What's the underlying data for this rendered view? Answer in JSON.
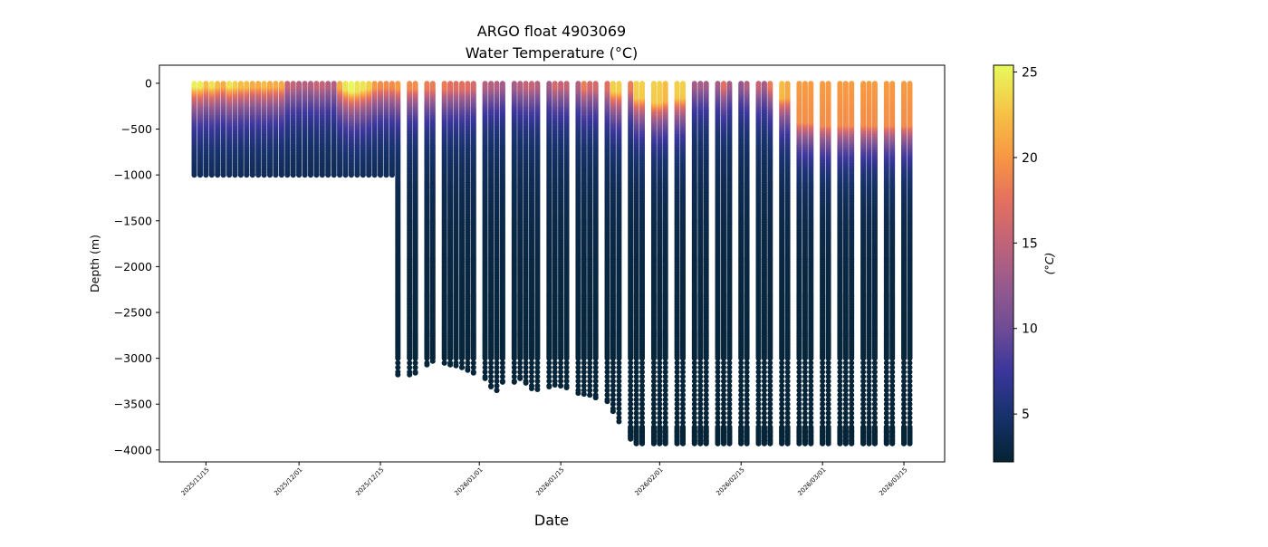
{
  "chart_data": {
    "type": "scatter",
    "title": "ARGO float 4903069",
    "subtitle": "Water Temperature (°C)",
    "xlabel": "Date",
    "ylabel": "Depth (m)",
    "xlim": [
      "2025-11-07",
      "2026-03-22"
    ],
    "ylim": [
      -4130,
      197
    ],
    "x_ticks": [
      "2025/11/15",
      "2025/12/01",
      "2025/12/15",
      "2026/01/01",
      "2026/01/15",
      "2026/02/01",
      "2026/02/15",
      "2026/03/01",
      "2026/03/15"
    ],
    "y_ticks": [
      0,
      -500,
      -1000,
      -1500,
      -2000,
      -2500,
      -3000,
      -3500,
      -4000
    ],
    "grid": false,
    "colorbar": {
      "label": "(°C)",
      "range": [
        2.2,
        25.4
      ],
      "ticks": [
        5,
        10,
        15,
        20,
        25
      ],
      "colormap": [
        {
          "value": 2.2,
          "color": "#042333"
        },
        {
          "value": 5,
          "color": "#18326e"
        },
        {
          "value": 7.5,
          "color": "#3b369c"
        },
        {
          "value": 10,
          "color": "#6e4c95"
        },
        {
          "value": 12.5,
          "color": "#965a8e"
        },
        {
          "value": 15,
          "color": "#c06379"
        },
        {
          "value": 17.5,
          "color": "#e4705f"
        },
        {
          "value": 20,
          "color": "#f79643"
        },
        {
          "value": 22.5,
          "color": "#f6c045"
        },
        {
          "value": 25.4,
          "color": "#e8fa5b"
        }
      ]
    },
    "profile_columns": [
      "date",
      "max_depth_m",
      "surface_temp_c",
      "mixed_layer_depth_m"
    ],
    "profiles": [
      [
        "2025-11-13",
        -1000,
        24.5,
        30
      ],
      [
        "2025-11-14",
        -1000,
        24.5,
        30
      ],
      [
        "2025-11-15",
        -1000,
        22,
        30
      ],
      [
        "2025-11-16",
        -1000,
        24,
        30
      ],
      [
        "2025-11-17",
        -1000,
        22,
        30
      ],
      [
        "2025-11-18",
        -1000,
        21,
        30
      ],
      [
        "2025-11-19",
        -1000,
        24,
        30
      ],
      [
        "2025-11-20",
        -1000,
        23,
        30
      ],
      [
        "2025-11-21",
        -1000,
        22,
        30
      ],
      [
        "2025-11-22",
        -1000,
        22,
        30
      ],
      [
        "2025-11-23",
        -1000,
        21,
        30
      ],
      [
        "2025-11-24",
        -1000,
        21,
        30
      ],
      [
        "2025-11-25",
        -1000,
        22,
        30
      ],
      [
        "2025-11-26",
        -1000,
        21,
        30
      ],
      [
        "2025-11-27",
        -1000,
        21,
        30
      ],
      [
        "2025-11-28",
        -1000,
        21,
        30
      ],
      [
        "2025-11-29",
        -1000,
        15,
        30
      ],
      [
        "2025-11-30",
        -1000,
        15,
        30
      ],
      [
        "2025-12-01",
        -1000,
        14,
        30
      ],
      [
        "2025-12-02",
        -1000,
        14,
        30
      ],
      [
        "2025-12-03",
        -1000,
        14,
        30
      ],
      [
        "2025-12-04",
        -1000,
        15,
        30
      ],
      [
        "2025-12-05",
        -1000,
        15,
        30
      ],
      [
        "2025-12-06",
        -1000,
        14,
        30
      ],
      [
        "2025-12-07",
        -1000,
        14,
        30
      ],
      [
        "2025-12-08",
        -1000,
        21,
        40
      ],
      [
        "2025-12-09",
        -1000,
        24,
        60
      ],
      [
        "2025-12-10",
        -1000,
        25,
        80
      ],
      [
        "2025-12-11",
        -1000,
        24,
        80
      ],
      [
        "2025-12-12",
        -1000,
        24,
        60
      ],
      [
        "2025-12-13",
        -1000,
        23,
        50
      ],
      [
        "2025-12-14",
        -1000,
        20,
        40
      ],
      [
        "2025-12-15",
        -1000,
        19,
        40
      ],
      [
        "2025-12-16",
        -1000,
        19,
        40
      ],
      [
        "2025-12-17",
        -1000,
        19,
        40
      ],
      [
        "2025-12-18",
        -3180,
        20,
        50
      ],
      [
        "2025-12-20",
        -3180,
        19,
        50
      ],
      [
        "2025-12-21",
        -3160,
        19,
        50
      ],
      [
        "2025-12-23",
        -3070,
        18,
        50
      ],
      [
        "2025-12-24",
        -3030,
        18,
        50
      ],
      [
        "2025-12-26",
        -3050,
        18,
        50
      ],
      [
        "2025-12-27",
        -3070,
        17,
        50
      ],
      [
        "2025-12-28",
        -3080,
        17,
        50
      ],
      [
        "2025-12-29",
        -3100,
        17,
        50
      ],
      [
        "2025-12-30",
        -3130,
        17,
        50
      ],
      [
        "2025-12-31",
        -3160,
        16,
        50
      ],
      [
        "2026-01-02",
        -3220,
        14,
        40
      ],
      [
        "2026-01-03",
        -3310,
        14,
        40
      ],
      [
        "2026-01-04",
        -3350,
        14,
        40
      ],
      [
        "2026-01-05",
        -3260,
        13,
        40
      ],
      [
        "2026-01-07",
        -3260,
        13,
        40
      ],
      [
        "2026-01-08",
        -3220,
        14,
        40
      ],
      [
        "2026-01-09",
        -3270,
        15,
        40
      ],
      [
        "2026-01-10",
        -3330,
        15,
        40
      ],
      [
        "2026-01-11",
        -3340,
        14,
        40
      ],
      [
        "2026-01-13",
        -3310,
        13,
        40
      ],
      [
        "2026-01-14",
        -3290,
        16,
        40
      ],
      [
        "2026-01-15",
        -3300,
        15,
        40
      ],
      [
        "2026-01-16",
        -3320,
        15,
        40
      ],
      [
        "2026-01-18",
        -3380,
        14,
        40
      ],
      [
        "2026-01-19",
        -3390,
        18,
        50
      ],
      [
        "2026-01-20",
        -3400,
        16,
        50
      ],
      [
        "2026-01-21",
        -3430,
        16,
        50
      ],
      [
        "2026-01-23",
        -3470,
        17,
        60
      ],
      [
        "2026-01-24",
        -3580,
        23,
        80
      ],
      [
        "2026-01-25",
        -3690,
        23,
        80
      ],
      [
        "2026-01-27",
        -3880,
        18,
        60
      ],
      [
        "2026-01-28",
        -3930,
        23,
        150
      ],
      [
        "2026-01-29",
        -3930,
        23,
        150
      ],
      [
        "2026-01-31",
        -3930,
        23,
        200
      ],
      [
        "2026-02-01",
        -3930,
        23,
        200
      ],
      [
        "2026-02-02",
        -3930,
        22,
        180
      ],
      [
        "2026-02-04",
        -3930,
        23,
        150
      ],
      [
        "2026-02-05",
        -3930,
        23,
        150
      ],
      [
        "2026-02-07",
        -3930,
        13,
        30
      ],
      [
        "2026-02-08",
        -3930,
        13,
        30
      ],
      [
        "2026-02-09",
        -3930,
        13,
        30
      ],
      [
        "2026-02-11",
        -3930,
        13,
        30
      ],
      [
        "2026-02-12",
        -3930,
        17,
        40
      ],
      [
        "2026-02-13",
        -3930,
        13,
        30
      ],
      [
        "2026-02-15",
        -3930,
        12,
        30
      ],
      [
        "2026-02-16",
        -3930,
        14,
        30
      ],
      [
        "2026-02-18",
        -3930,
        15,
        40
      ],
      [
        "2026-02-19",
        -3930,
        13,
        30
      ],
      [
        "2026-02-20",
        -3930,
        18,
        40
      ],
      [
        "2026-02-22",
        -3930,
        22,
        150
      ],
      [
        "2026-02-23",
        -3930,
        21,
        150
      ],
      [
        "2026-02-25",
        -3930,
        20,
        420
      ],
      [
        "2026-02-26",
        -3930,
        20,
        420
      ],
      [
        "2026-02-27",
        -3930,
        20,
        420
      ],
      [
        "2026-03-01",
        -3930,
        20,
        450
      ],
      [
        "2026-03-02",
        -3930,
        20,
        450
      ],
      [
        "2026-03-04",
        -3930,
        20,
        450
      ],
      [
        "2026-03-05",
        -3930,
        20,
        450
      ],
      [
        "2026-03-06",
        -3930,
        20,
        450
      ],
      [
        "2026-03-08",
        -3930,
        20,
        450
      ],
      [
        "2026-03-09",
        -3930,
        20,
        450
      ],
      [
        "2026-03-10",
        -3930,
        20,
        450
      ],
      [
        "2026-03-12",
        -3930,
        20,
        450
      ],
      [
        "2026-03-13",
        -3930,
        20,
        450
      ],
      [
        "2026-03-15",
        -3930,
        20,
        450
      ],
      [
        "2026-03-16",
        -3930,
        20,
        450
      ]
    ]
  }
}
